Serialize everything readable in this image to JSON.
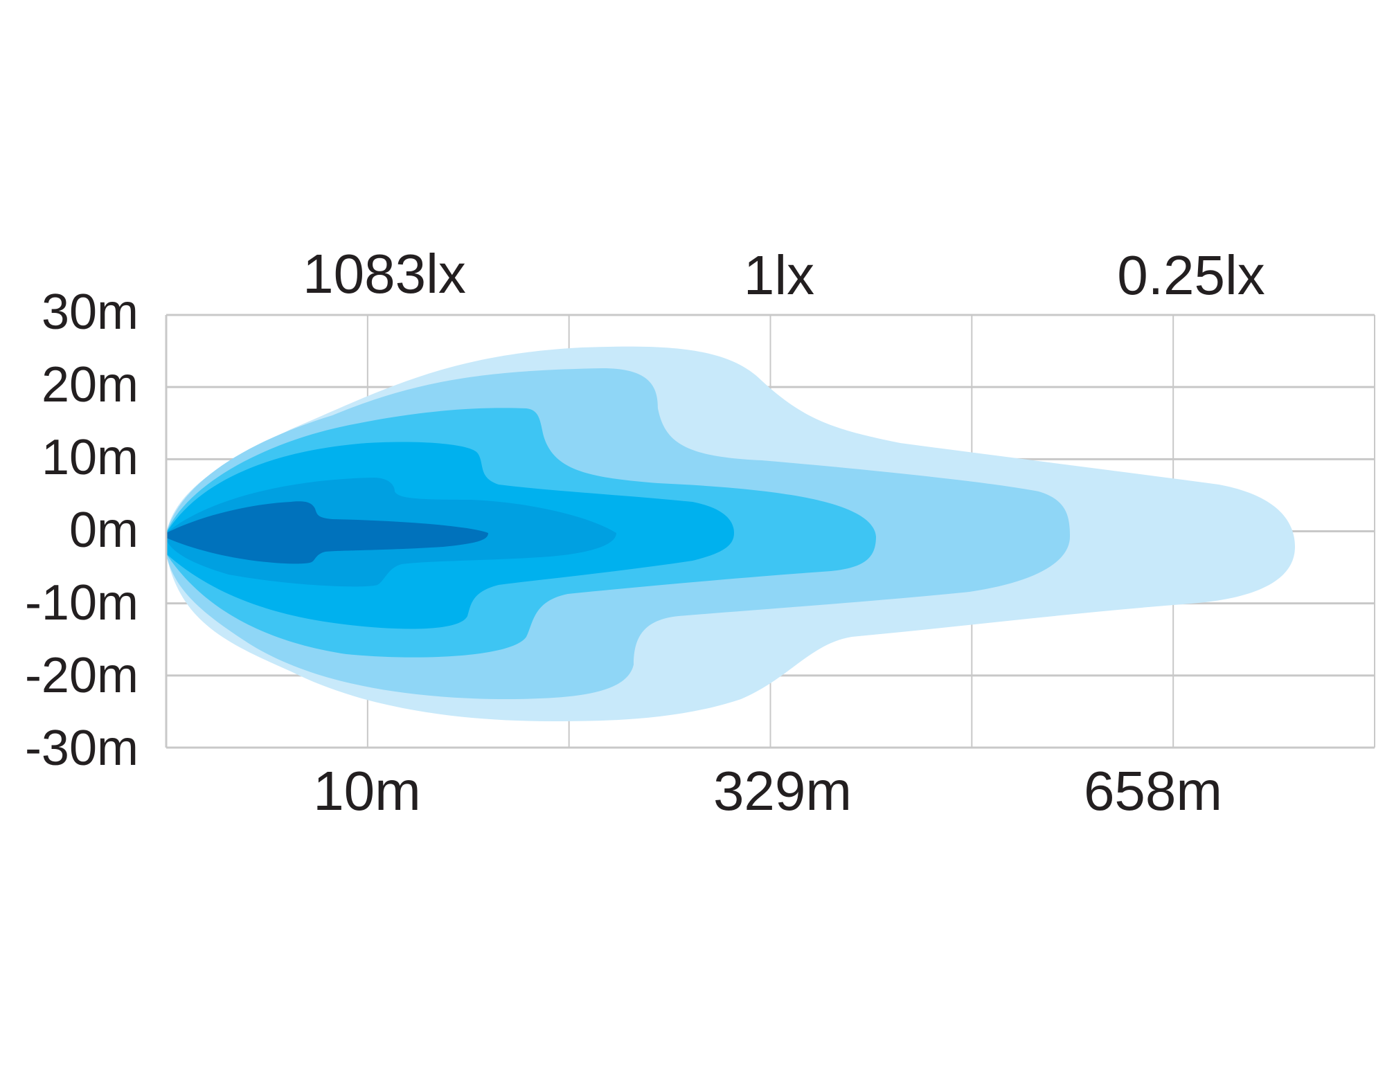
{
  "chart_data": {
    "type": "area",
    "lux_labels": [
      "1083lx",
      "1lx",
      "0.25lx"
    ],
    "y_tick_labels": [
      "30m",
      "20m",
      "10m",
      "0m",
      "-10m",
      "-20m",
      "-30m"
    ],
    "y_values": [
      30,
      20,
      10,
      0,
      -10,
      -20,
      -30
    ],
    "ylim": [
      -30,
      30
    ],
    "x_tick_labels": [
      "10m",
      "329m",
      "658m"
    ],
    "grid": true,
    "series": [
      {
        "color": "#c8e9fa"
      },
      {
        "color": "#8fd6f6"
      },
      {
        "color": "#3ec5f3"
      },
      {
        "color": "#00b1ee"
      },
      {
        "color": "#00a0e1"
      },
      {
        "color": "#0072bc"
      }
    ],
    "colors": {
      "grid": "#c8c8c8",
      "text": "#231f20"
    }
  }
}
